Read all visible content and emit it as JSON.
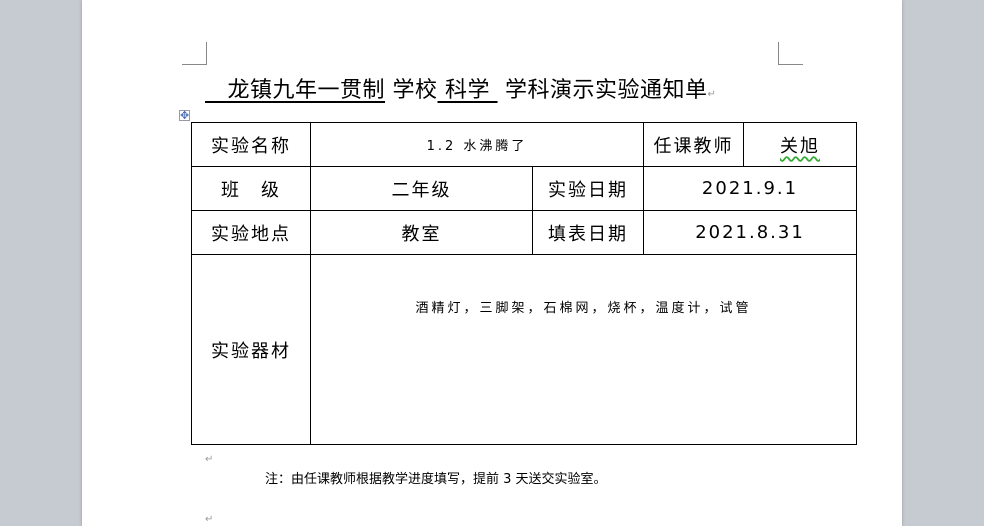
{
  "title": {
    "school": "龙镇九年一贯制",
    "school_suffix": "学校",
    "subject": "科学",
    "suffix": "学科演示实验通知单"
  },
  "table": {
    "name_label": "实验名称",
    "name_value": "1.2 水沸腾了",
    "teacher_label": "任课教师",
    "teacher_value": "关旭",
    "class_label": "班　级",
    "class_value": "二年级",
    "date_label": "实验日期",
    "date_value": "2021.9.1",
    "place_label": "实验地点",
    "place_value": "教室",
    "fill_label": "填表日期",
    "fill_value": "2021.8.31",
    "equip_label": "实验器材",
    "equip_value": "酒精灯，三脚架，石棉网，烧杯，温度计，试管"
  },
  "note": "注：由任课教师根据教学进度填写，提前 3 天送交实验室。",
  "paragraph_mark": "↵"
}
